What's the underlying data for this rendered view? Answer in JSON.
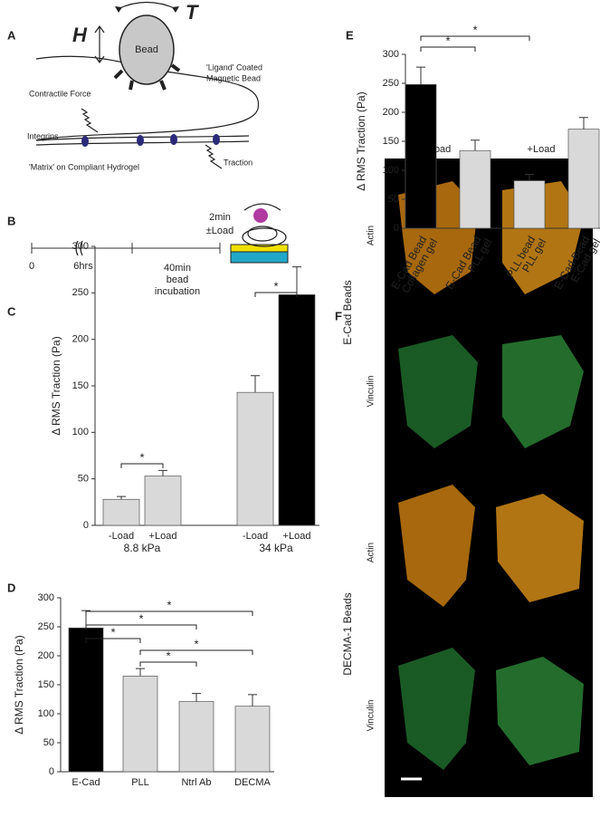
{
  "chart_data": [
    {
      "type": "bar",
      "panel": "C",
      "y_label": "Δ RMS Traction (Pa)",
      "categories": [
        "-Load",
        "+Load",
        "-Load",
        "+Load"
      ],
      "group_labels": [
        "8.8 kPa",
        "34 kPa"
      ],
      "values": [
        28,
        53,
        143,
        248
      ],
      "errors": [
        3,
        6,
        18,
        30
      ],
      "colors": [
        "#d9d9d9",
        "#d9d9d9",
        "#d9d9d9",
        "#000000"
      ],
      "ylim": [
        0,
        300
      ],
      "yticks": [
        0,
        50,
        100,
        150,
        200,
        250,
        300
      ],
      "significance": [
        {
          "from": 0,
          "to": 1,
          "label": "*"
        },
        {
          "from": 2,
          "to": 3,
          "label": "*"
        }
      ]
    },
    {
      "type": "bar",
      "panel": "D",
      "y_label": "Δ RMS Traction (Pa)",
      "categories": [
        "E-Cad",
        "PLL",
        "Ntrl Ab",
        "DECMA"
      ],
      "values": [
        248,
        165,
        121,
        113
      ],
      "errors": [
        30,
        13,
        14,
        20
      ],
      "colors": [
        "#000000",
        "#d9d9d9",
        "#d9d9d9",
        "#d9d9d9"
      ],
      "ylim": [
        0,
        300
      ],
      "yticks": [
        0,
        50,
        100,
        150,
        200,
        250,
        300
      ],
      "significance": [
        {
          "from": 0,
          "to": 3,
          "label": "*"
        },
        {
          "from": 0,
          "to": 2,
          "label": "*"
        },
        {
          "from": 0,
          "to": 1,
          "label": "*"
        },
        {
          "from": 1,
          "to": 3,
          "label": "*"
        },
        {
          "from": 1,
          "to": 2,
          "label": "*"
        }
      ]
    },
    {
      "type": "bar",
      "panel": "E",
      "y_label": "Δ RMS Traction (Pa)",
      "categories": [
        [
          "E-Cad Bead",
          "Collagen gel"
        ],
        [
          "E-Cad Bead",
          "PLL gel"
        ],
        [
          "PLL bead",
          "PLL gel"
        ],
        [
          "E-Cad Bead",
          "E-Cad gel"
        ]
      ],
      "values": [
        248,
        134,
        82,
        171
      ],
      "errors": [
        30,
        18,
        11,
        20
      ],
      "colors": [
        "#000000",
        "#d9d9d9",
        "#d9d9d9",
        "#d9d9d9"
      ],
      "ylim": [
        0,
        300
      ],
      "yticks": [
        0,
        50,
        100,
        150,
        200,
        250,
        300
      ],
      "significance": [
        {
          "from": 0,
          "to": 2,
          "label": "*"
        },
        {
          "from": 0,
          "to": 1,
          "label": "*"
        }
      ]
    }
  ],
  "panel_a": {
    "letter": "A",
    "h": "H",
    "t": "T",
    "bead": "Bead",
    "bead_note": [
      "'Ligand' Coated",
      "Magnetic Bead"
    ],
    "force": "Contractile Force",
    "integrins": "Integrins",
    "matrix": "'Matrix' on Compliant Hydrogel",
    "traction": "Traction"
  },
  "panel_b": {
    "letter": "B",
    "times": [
      "0",
      "6hrs"
    ],
    "incubation": [
      "40min",
      "bead",
      "incubation"
    ],
    "load": [
      "2min",
      "±Load"
    ]
  },
  "panel_f": {
    "letter": "F",
    "columns": [
      "–Load",
      "+Load"
    ],
    "groups": [
      "E-Cad Beads",
      "DECMA-1 Beads"
    ],
    "rows": [
      "Actin",
      "Vinculin",
      "Actin",
      "Vinculin"
    ]
  }
}
